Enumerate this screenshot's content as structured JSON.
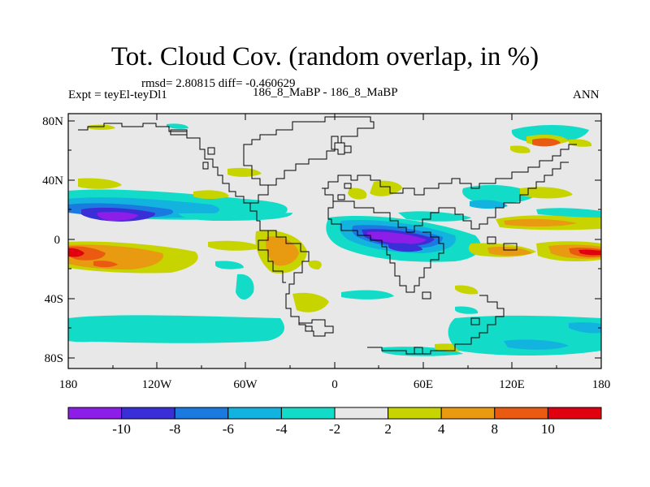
{
  "title": "Tot. Cloud Cov. (random overlap, in %)",
  "stats": "rmsd= 2.80815 diff= -0.460629",
  "experiment": "Expt = teyEl-teyDl1",
  "case": "186_8_MaBP - 186_8_MaBP",
  "season": "ANN",
  "axes": {
    "lat_ticks": [
      "80N",
      "40N",
      "0",
      "40S",
      "80S"
    ],
    "lon_ticks": [
      "180",
      "120W",
      "60W",
      "0",
      "60E",
      "120E",
      "180"
    ]
  },
  "colorbar": {
    "labels": [
      "-10",
      "-8",
      "-6",
      "-4",
      "-2",
      "2",
      "4",
      "8",
      "10"
    ],
    "colors": [
      "#8c1ee8",
      "#3a2fd6",
      "#1a7ae0",
      "#13b3e0",
      "#12dcc8",
      "#e8e8e8",
      "#c8d400",
      "#e89a10",
      "#ea5a10",
      "#e00010"
    ]
  },
  "colors": {
    "land_fill": "#e8e8e8",
    "coastline": "#000000"
  }
}
